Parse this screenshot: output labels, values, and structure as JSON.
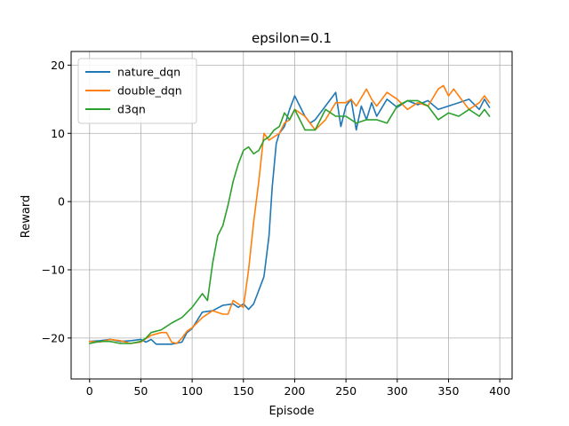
{
  "chart_data": {
    "type": "line",
    "title": "epsilon=0.1",
    "xlabel": "Episode",
    "ylabel": "Reward",
    "xlim": [
      -18,
      412
    ],
    "ylim": [
      -26,
      22
    ],
    "xticks": [
      0,
      50,
      100,
      150,
      200,
      250,
      300,
      350,
      400
    ],
    "yticks": [
      -20,
      -10,
      0,
      10,
      20
    ],
    "grid": true,
    "legend_position": "top-left",
    "series": [
      {
        "name": "nature_dqn",
        "color": "#1f77b4",
        "x": [
          0,
          10,
          20,
          30,
          40,
          50,
          55,
          60,
          65,
          70,
          80,
          90,
          95,
          100,
          110,
          120,
          130,
          140,
          145,
          150,
          155,
          160,
          165,
          170,
          175,
          178,
          182,
          185,
          190,
          195,
          200,
          205,
          210,
          215,
          220,
          225,
          230,
          240,
          245,
          250,
          255,
          260,
          265,
          270,
          275,
          280,
          290,
          300,
          310,
          320,
          330,
          340,
          350,
          360,
          370,
          380,
          385,
          390
        ],
        "y": [
          -20.5,
          -20.4,
          -20.2,
          -20.5,
          -20.4,
          -20.2,
          -20.6,
          -20.2,
          -20.9,
          -20.9,
          -20.9,
          -20.6,
          -19.2,
          -18.6,
          -16.2,
          -16.0,
          -15.2,
          -15.0,
          -15.5,
          -15.0,
          -15.8,
          -15.0,
          -13.0,
          -11.0,
          -5.0,
          2.0,
          8.5,
          10.0,
          11.0,
          13.5,
          15.5,
          14.0,
          12.5,
          11.5,
          12.0,
          13.0,
          14.0,
          16.0,
          11.0,
          14.0,
          15.0,
          10.5,
          14.0,
          12.0,
          14.5,
          12.5,
          15.0,
          13.8,
          14.8,
          14.2,
          14.8,
          13.5,
          14.0,
          14.5,
          15.0,
          13.5,
          15.0,
          13.8
        ]
      },
      {
        "name": "double_dqn",
        "color": "#ff7f0e",
        "x": [
          0,
          10,
          20,
          30,
          40,
          50,
          55,
          60,
          70,
          75,
          80,
          85,
          90,
          95,
          100,
          110,
          120,
          130,
          135,
          140,
          145,
          150,
          155,
          160,
          165,
          170,
          175,
          180,
          185,
          190,
          195,
          200,
          210,
          220,
          230,
          240,
          250,
          255,
          260,
          270,
          275,
          280,
          290,
          300,
          310,
          320,
          330,
          340,
          345,
          350,
          355,
          360,
          370,
          380,
          385,
          390
        ],
        "y": [
          -20.5,
          -20.6,
          -20.2,
          -20.4,
          -20.8,
          -20.6,
          -20.1,
          -19.6,
          -19.2,
          -19.2,
          -20.6,
          -20.8,
          -20.0,
          -19.0,
          -18.5,
          -17.0,
          -16.0,
          -16.5,
          -16.5,
          -14.5,
          -15.0,
          -15.5,
          -10.0,
          -3.0,
          3.0,
          10.0,
          9.0,
          9.5,
          10.0,
          11.5,
          12.0,
          13.5,
          12.5,
          10.5,
          12.0,
          14.5,
          14.5,
          15.0,
          14.0,
          16.5,
          15.0,
          14.0,
          16.0,
          15.0,
          13.5,
          14.5,
          14.0,
          16.5,
          17.0,
          15.5,
          16.5,
          15.5,
          13.5,
          14.5,
          15.5,
          14.5
        ]
      },
      {
        "name": "d3qn",
        "color": "#2ca02c",
        "x": [
          0,
          10,
          20,
          30,
          40,
          50,
          55,
          60,
          65,
          70,
          80,
          90,
          100,
          110,
          115,
          120,
          125,
          130,
          135,
          140,
          145,
          150,
          155,
          160,
          165,
          170,
          175,
          180,
          185,
          190,
          195,
          200,
          210,
          220,
          230,
          240,
          250,
          260,
          270,
          280,
          290,
          300,
          310,
          320,
          330,
          340,
          350,
          360,
          370,
          380,
          385,
          390
        ],
        "y": [
          -20.8,
          -20.5,
          -20.5,
          -20.8,
          -20.8,
          -20.5,
          -20.0,
          -19.2,
          -19.0,
          -18.8,
          -17.8,
          -17.0,
          -15.5,
          -13.5,
          -14.5,
          -9.0,
          -5.0,
          -3.5,
          -0.5,
          3.0,
          5.5,
          7.5,
          8.0,
          7.0,
          7.5,
          9.0,
          9.5,
          10.5,
          11.0,
          13.0,
          12.0,
          13.5,
          10.5,
          10.5,
          13.5,
          12.5,
          12.5,
          11.5,
          12.0,
          12.0,
          11.5,
          14.0,
          14.8,
          14.8,
          14.0,
          12.0,
          13.0,
          12.5,
          13.5,
          12.5,
          13.5,
          12.5
        ]
      }
    ]
  }
}
